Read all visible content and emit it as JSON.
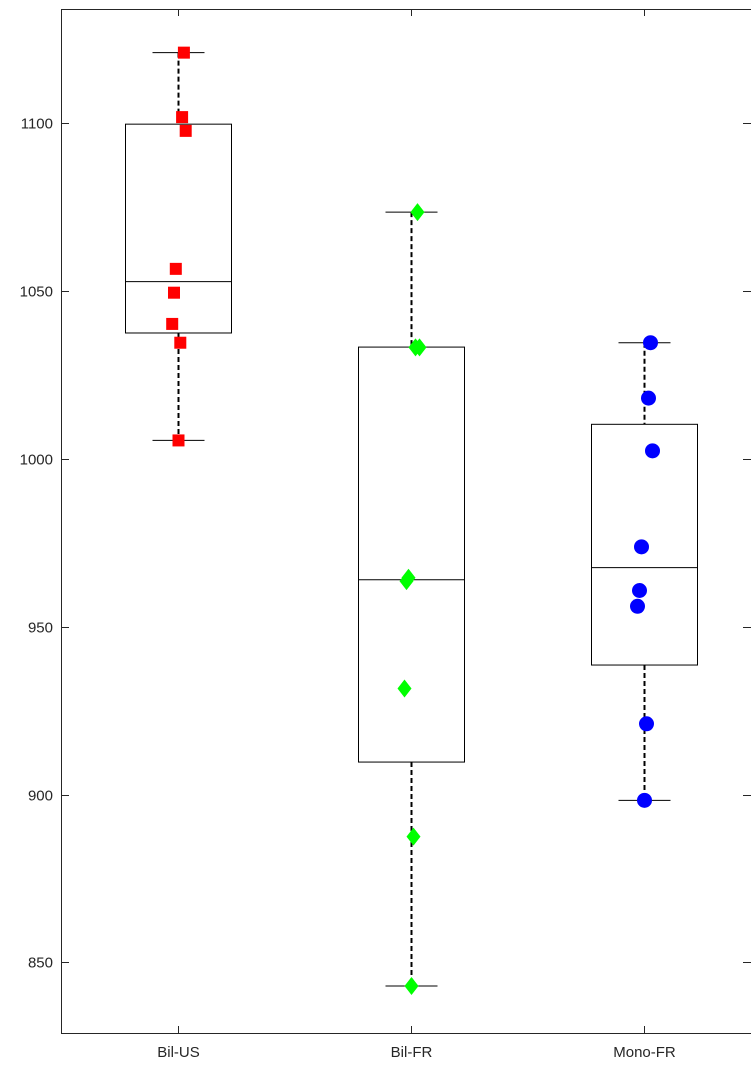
{
  "chart_data": {
    "type": "box",
    "title": "",
    "xlabel": "",
    "ylabel": "",
    "ylim": [
      829,
      1134
    ],
    "yticks": [
      850,
      900,
      950,
      1000,
      1050,
      1100
    ],
    "grid": false,
    "categories": [
      "Bil-US",
      "Bil-FR",
      "Mono-FR"
    ],
    "groups": [
      {
        "category": "Bil-US",
        "color": "#ff0000",
        "marker": "square",
        "whisker_low": 1005.5,
        "q1": 1037.5,
        "median": 1052.8,
        "q3": 1099.7,
        "whisker_high": 1121.0,
        "points": [
          1121.0,
          1101.8,
          1097.7,
          1056.6,
          1049.5,
          1040.2,
          1034.6,
          1005.5
        ]
      },
      {
        "category": "Bil-FR",
        "color": "#00ff00",
        "marker": "diamond",
        "whisker_low": 843.0,
        "q1": 909.7,
        "median": 964.0,
        "q3": 1033.3,
        "whisker_high": 1073.5,
        "points": [
          1073.5,
          1033.2,
          1033.2,
          964.6,
          963.6,
          931.6,
          887.5,
          843.0
        ]
      },
      {
        "category": "Mono-FR",
        "color": "#0000ff",
        "marker": "circle",
        "whisker_low": 898.3,
        "q1": 938.6,
        "median": 967.6,
        "q3": 1010.3,
        "whisker_high": 1034.6,
        "points": [
          1034.6,
          1018.1,
          1002.4,
          973.8,
          960.8,
          956.1,
          921.1,
          898.3
        ]
      }
    ]
  }
}
